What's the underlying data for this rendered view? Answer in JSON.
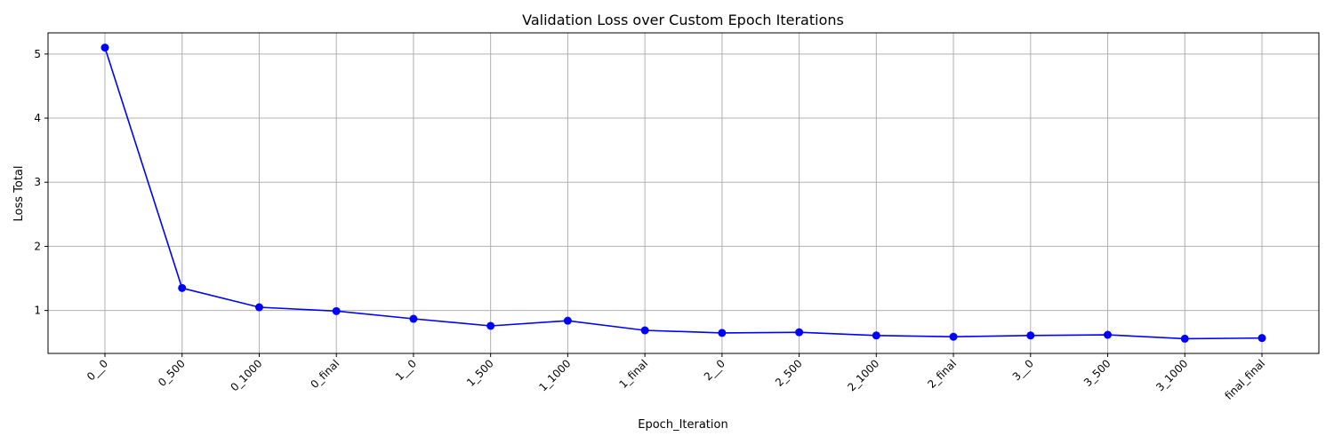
{
  "chart_data": {
    "type": "line",
    "title": "Validation Loss over Custom Epoch Iterations",
    "xlabel": "Epoch_Iteration",
    "ylabel": "Loss Total",
    "categories": [
      "0__0",
      "0_500",
      "0_1000",
      "0_final",
      "1__0",
      "1_500",
      "1_1000",
      "1_final",
      "2__0",
      "2_500",
      "2_1000",
      "2_final",
      "3__0",
      "3_500",
      "3_1000",
      "final_final"
    ],
    "series": [
      {
        "name": "",
        "values": [
          5.1,
          1.35,
          1.05,
          0.99,
          0.87,
          0.76,
          0.84,
          0.69,
          0.65,
          0.66,
          0.61,
          0.59,
          0.61,
          0.62,
          0.56,
          0.57
        ],
        "color": "#0000ff",
        "marker": "circle"
      }
    ],
    "ylim": [
      0.33,
      5.33
    ],
    "yticks": [
      1,
      2,
      3,
      4,
      5
    ],
    "grid": true,
    "x_tick_rotation": 45
  }
}
